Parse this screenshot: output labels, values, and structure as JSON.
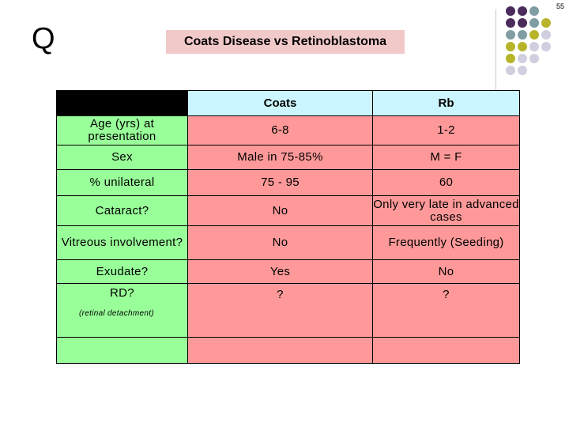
{
  "slide": {
    "page_number": "55",
    "q_letter": "Q",
    "title": "Coats Disease vs Retinoblastoma"
  },
  "table": {
    "headers": [
      "",
      "Coats",
      "Rb"
    ],
    "rows": [
      {
        "label": "Age (yrs) at presentation",
        "coats": "6-8",
        "rb": "1-2"
      },
      {
        "label": "Sex",
        "coats": "Male in 75-85%",
        "rb": "M = F"
      },
      {
        "label": "% unilateral",
        "coats": "75 - 95",
        "rb": "60"
      },
      {
        "label": "Cataract?",
        "coats": "No",
        "rb": "Only very late in advanced cases"
      },
      {
        "label": "Vitreous involvement?",
        "coats": "No",
        "rb": "Frequently (Seeding)"
      },
      {
        "label": "Exudate?",
        "coats": "Yes",
        "rb": "No"
      },
      {
        "label": "RD?",
        "coats": "?",
        "rb": "?",
        "note": "(retinal detachment)"
      },
      {
        "label": "",
        "coats": "",
        "rb": ""
      }
    ]
  },
  "colors": {
    "header_black": "#000000",
    "header_cyan": "#ccf6ff",
    "label_green": "#99ff99",
    "value_pink": "#ff9999",
    "title_bg": "#f2c9c9",
    "dot_purple": "#4b2a5c",
    "dot_teal": "#7f9da3",
    "dot_olive": "#b7b42a",
    "dot_lavender": "#cfcfe0"
  }
}
